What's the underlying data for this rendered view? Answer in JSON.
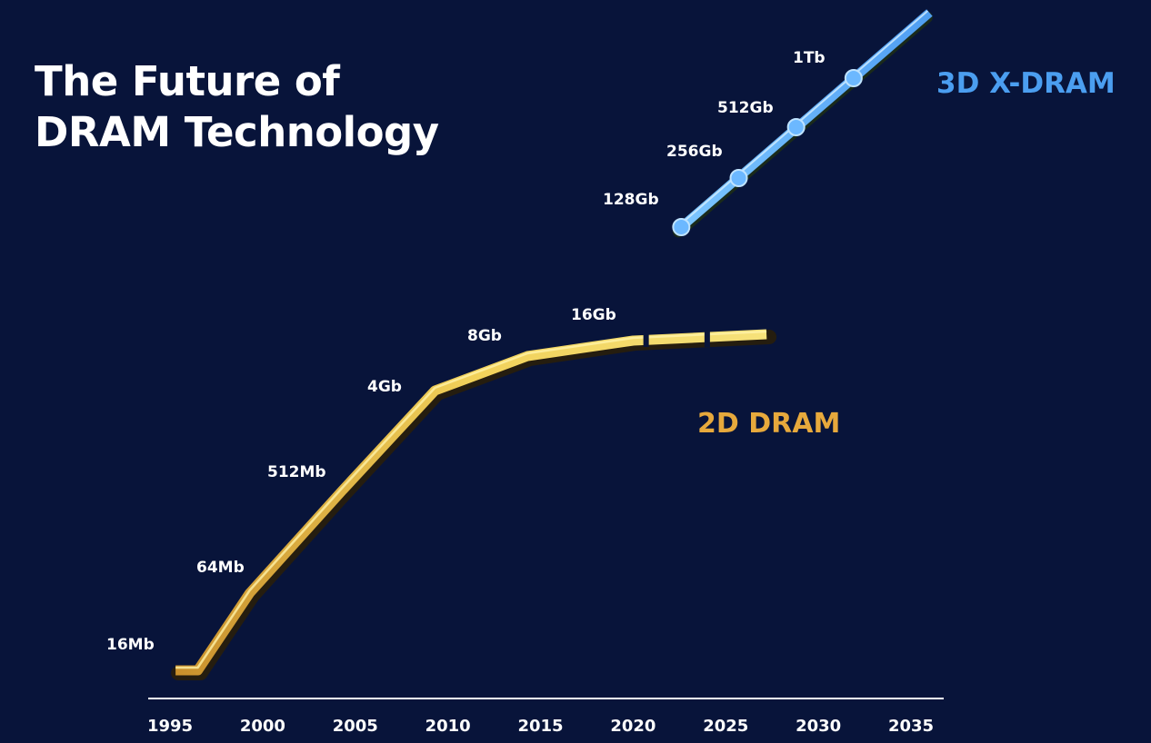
{
  "title": {
    "line1": "The Future of",
    "line2": "DRAM Technology"
  },
  "colors": {
    "background": "#08143a",
    "dram2d": "#e7c24a",
    "dram3d": "#6cb8ff",
    "dram2d_label": "#e7a93c",
    "dram3d_label": "#4b9ef0",
    "axis": "#ffffff"
  },
  "chart_data": {
    "type": "line",
    "x_ticks": [
      "1995",
      "2000",
      "2005",
      "2010",
      "2015",
      "2020",
      "2025",
      "2030",
      "2035"
    ],
    "xlim": [
      1995,
      2035
    ],
    "y_scale": "log",
    "grid": false,
    "series": [
      {
        "name": "2D DRAM",
        "points": [
          {
            "x": 1995.3,
            "label": "16Mb"
          },
          {
            "x": 1996.5,
            "label": ""
          },
          {
            "x": 1999.3,
            "label": "64Mb"
          },
          {
            "x": 2004.3,
            "label": "512Mb"
          },
          {
            "x": 2009.3,
            "label": "4Gb"
          },
          {
            "x": 2014.3,
            "label": "8Gb"
          },
          {
            "x": 2020.0,
            "label": "16Gb"
          },
          {
            "x": 2027.2,
            "label": ""
          }
        ],
        "dashed_segment_start_x": 2020.7
      },
      {
        "name": "3D X-DRAM",
        "points": [
          {
            "x": 2022.6,
            "label": "128Gb"
          },
          {
            "x": 2025.7,
            "label": "256Gb"
          },
          {
            "x": 2028.8,
            "label": "512Gb"
          },
          {
            "x": 2031.9,
            "label": "1Tb"
          },
          {
            "x": 2036.0,
            "label": ""
          }
        ]
      }
    ]
  }
}
